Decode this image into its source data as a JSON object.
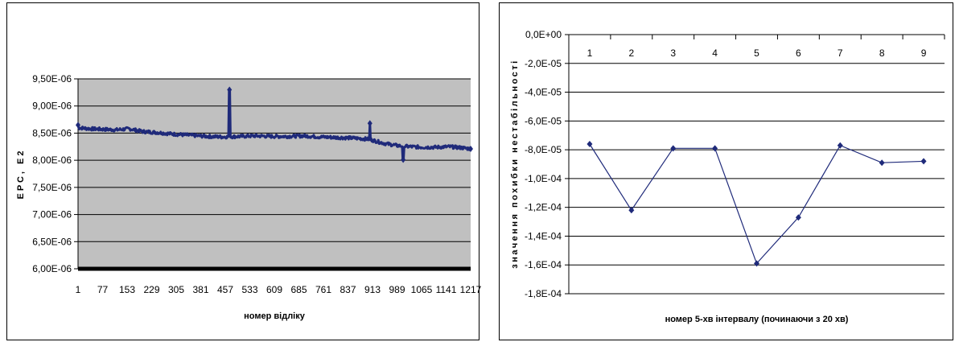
{
  "chart_data": [
    {
      "type": "line",
      "xlabel": "номер відліку",
      "ylabel": "ЕРС, Е2",
      "ylim": [
        6e-06,
        9.5e-06
      ],
      "yticks": [
        "9,50E-06",
        "9,00E-06",
        "8,50E-06",
        "8,00E-06",
        "7,50E-06",
        "7,00E-06",
        "6,50E-06",
        "6,00E-06"
      ],
      "ytick_values": [
        9.5e-06,
        9e-06,
        8.5e-06,
        8e-06,
        7.5e-06,
        7e-06,
        6.5e-06,
        6e-06
      ],
      "xlim": [
        1,
        1217
      ],
      "xticks": [
        "1",
        "77",
        "153",
        "229",
        "305",
        "381",
        "457",
        "533",
        "609",
        "685",
        "761",
        "837",
        "913",
        "989",
        "1065",
        "1141",
        "1217"
      ],
      "xtick_values": [
        1,
        77,
        153,
        229,
        305,
        381,
        457,
        533,
        609,
        685,
        761,
        837,
        913,
        989,
        1065,
        1141,
        1217
      ],
      "grid": true,
      "legend": "none",
      "color": "#1f2a7a",
      "series": [
        {
          "trend_x": [
            1,
            40,
            80,
            120,
            160,
            200,
            250,
            300,
            350,
            400,
            450,
            500,
            550,
            600,
            650,
            700,
            750,
            800,
            850,
            900,
            950,
            990,
            1030,
            1070,
            1110,
            1150,
            1190,
            1217
          ],
          "trend_y": [
            8.6e-06,
            8.58e-06,
            8.57e-06,
            8.56e-06,
            8.58e-06,
            8.53e-06,
            8.51e-06,
            8.48e-06,
            8.46e-06,
            8.44e-06,
            8.43e-06,
            8.44e-06,
            8.45e-06,
            8.44e-06,
            8.44e-06,
            8.45e-06,
            8.43e-06,
            8.42e-06,
            8.41e-06,
            8.39e-06,
            8.31e-06,
            8.27e-06,
            8.25e-06,
            8.24e-06,
            8.24e-06,
            8.25e-06,
            8.23e-06,
            8.21e-06
          ],
          "spikes": [
            {
              "x": 1,
              "y": 8.65e-06
            },
            {
              "x": 470,
              "y": 9.3e-06
            },
            {
              "x": 905,
              "y": 8.68e-06
            },
            {
              "x": 1008,
              "y": 8.01e-06
            },
            {
              "x": 1217,
              "y": 8.21e-06
            }
          ]
        }
      ]
    },
    {
      "type": "line",
      "xlabel": "номер 5-хв інтервалу (починаючи з 20 хв)",
      "ylabel": "значення похибки нестабільності",
      "ylim": [
        -0.00018,
        0
      ],
      "yticks": [
        "0,0E+00",
        "-2,0E-05",
        "-4,0E-05",
        "-6,0E-05",
        "-8,0E-05",
        "-1,0E-04",
        "-1,2E-04",
        "-1,4E-04",
        "-1,6E-04",
        "-1,8E-04"
      ],
      "ytick_values": [
        0,
        -2e-05,
        -4e-05,
        -6e-05,
        -8e-05,
        -0.0001,
        -0.00012,
        -0.00014,
        -0.00016,
        -0.00018
      ],
      "categories": [
        "1",
        "2",
        "3",
        "4",
        "5",
        "6",
        "7",
        "8",
        "9"
      ],
      "grid": true,
      "legend": "none",
      "color": "#1f2a7a",
      "series": [
        {
          "values": [
            -7.6e-05,
            -0.000122,
            -7.9e-05,
            -7.9e-05,
            -0.000159,
            -0.000127,
            -7.7e-05,
            -8.9e-05,
            -8.8e-05
          ]
        }
      ]
    }
  ]
}
